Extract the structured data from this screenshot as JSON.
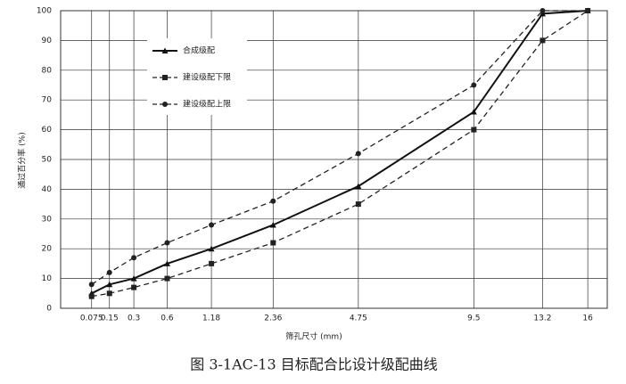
{
  "chart_data": {
    "type": "line",
    "caption": "图 3-1AC-13 目标配合比设计级配曲线",
    "x_label": "筛孔尺寸 (mm)",
    "y_label": "通过百分率 (%)",
    "x": [
      0.075,
      0.15,
      0.3,
      0.6,
      1.18,
      2.36,
      4.75,
      9.5,
      13.2,
      16
    ],
    "xscale": {
      "type": "power",
      "exponent": 0.45
    },
    "xlim": [
      0.008,
      17.3
    ],
    "xticks": [
      0.075,
      0.15,
      0.3,
      0.6,
      1.18,
      2.36,
      4.75,
      9.5,
      13.2,
      16
    ],
    "ylim": [
      0,
      100
    ],
    "yticks": [
      0,
      10,
      20,
      30,
      40,
      50,
      60,
      70,
      80,
      90,
      100
    ],
    "grid": true,
    "legend": "upper-left",
    "series": [
      {
        "name": "合成级配",
        "color": "#111111",
        "dash": false,
        "marker": "triangle",
        "values": [
          5,
          8,
          10,
          15,
          20,
          28,
          41,
          66,
          99,
          100
        ]
      },
      {
        "name": "建设级配下限",
        "color": "#222222",
        "dash": true,
        "marker": "square",
        "values": [
          4,
          5,
          7,
          10,
          15,
          22,
          35,
          60,
          90,
          100
        ]
      },
      {
        "name": "建设级配上限",
        "color": "#222222",
        "dash": true,
        "marker": "circle",
        "values": [
          8,
          12,
          17,
          22,
          28,
          36,
          52,
          75,
          100,
          100
        ]
      }
    ]
  }
}
